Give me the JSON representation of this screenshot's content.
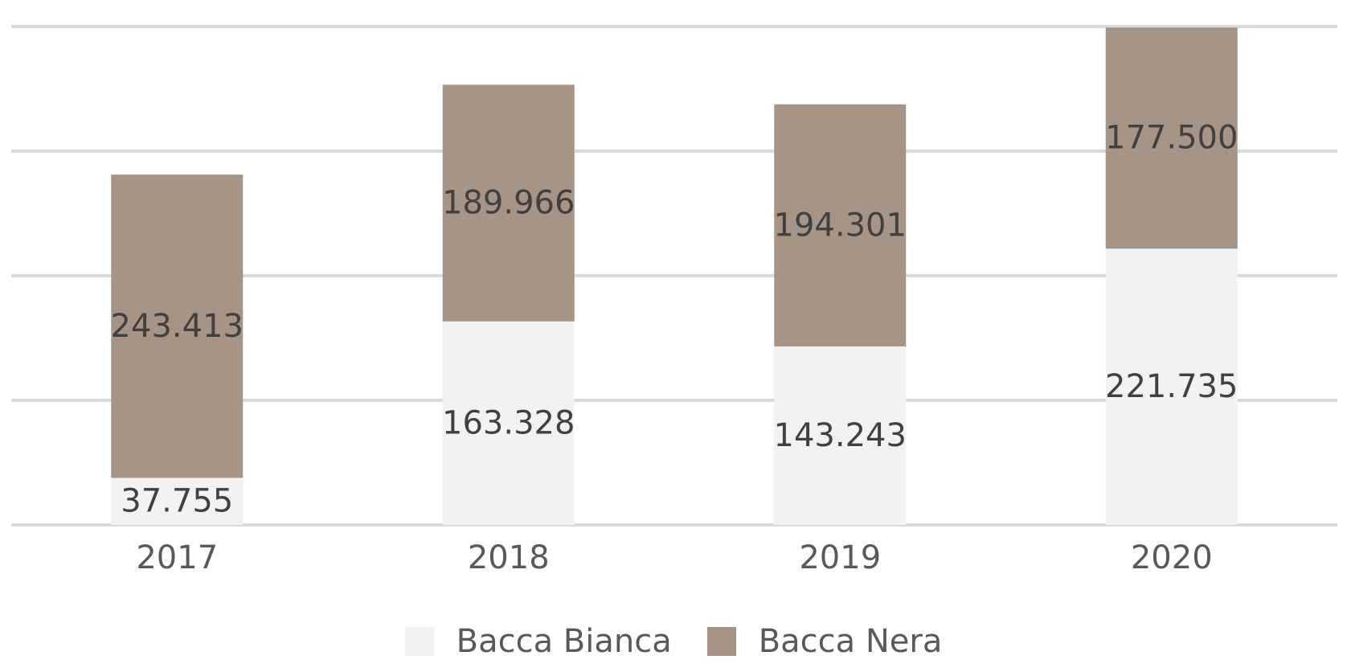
{
  "chart_data": {
    "type": "bar",
    "stacked": true,
    "categories": [
      "2017",
      "2018",
      "2019",
      "2020"
    ],
    "series": [
      {
        "name": "Bacca Bianca",
        "values": [
          37755,
          163328,
          143243,
          221735
        ],
        "labels": [
          "37.755",
          "163.328",
          "143.243",
          "221.735"
        ],
        "color": "#f2f2f2"
      },
      {
        "name": "Bacca Nera",
        "values": [
          243413,
          189966,
          194301,
          177500
        ],
        "labels": [
          "243.413",
          "189.966",
          "194.301",
          "177.500"
        ],
        "color": "#a69587"
      }
    ],
    "ylim": [
      0,
      400000
    ],
    "yticks": [
      0,
      100000,
      200000,
      300000,
      400000
    ],
    "grid": true,
    "legend": "bottom",
    "label_color": "#404040",
    "tick_color": "#595959",
    "grid_color": "#d9d9d9"
  }
}
